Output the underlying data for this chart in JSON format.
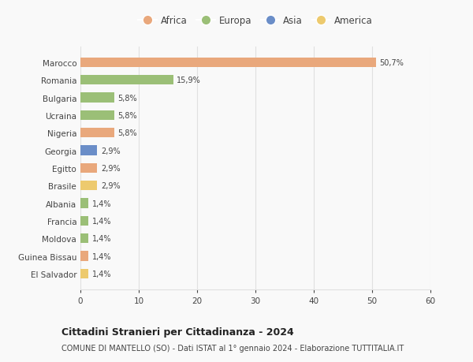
{
  "countries": [
    "El Salvador",
    "Guinea Bissau",
    "Moldova",
    "Francia",
    "Albania",
    "Brasile",
    "Egitto",
    "Georgia",
    "Nigeria",
    "Ucraina",
    "Bulgaria",
    "Romania",
    "Marocco"
  ],
  "values": [
    1.4,
    1.4,
    1.4,
    1.4,
    1.4,
    2.9,
    2.9,
    2.9,
    5.8,
    5.8,
    5.8,
    15.9,
    50.7
  ],
  "labels": [
    "1,4%",
    "1,4%",
    "1,4%",
    "1,4%",
    "1,4%",
    "2,9%",
    "2,9%",
    "2,9%",
    "5,8%",
    "5,8%",
    "5,8%",
    "15,9%",
    "50,7%"
  ],
  "colors": [
    "#EDCA6E",
    "#E9A87C",
    "#9BBF77",
    "#9BBF77",
    "#9BBF77",
    "#EDCA6E",
    "#E9A87C",
    "#6B8EC8",
    "#E9A87C",
    "#9BBF77",
    "#9BBF77",
    "#9BBF77",
    "#E9A87C"
  ],
  "continent_colors": {
    "Africa": "#E9A87C",
    "Europa": "#9BBF77",
    "Asia": "#6B8EC8",
    "America": "#EDCA6E"
  },
  "xlim": [
    0,
    60
  ],
  "xticks": [
    0,
    10,
    20,
    30,
    40,
    50,
    60
  ],
  "title": "Cittadini Stranieri per Cittadinanza - 2024",
  "subtitle": "COMUNE DI MANTELLO (SO) - Dati ISTAT al 1° gennaio 2024 - Elaborazione TUTTITALIA.IT",
  "bg_color": "#f9f9f9",
  "grid_color": "#e0e0e0",
  "text_color": "#444444"
}
